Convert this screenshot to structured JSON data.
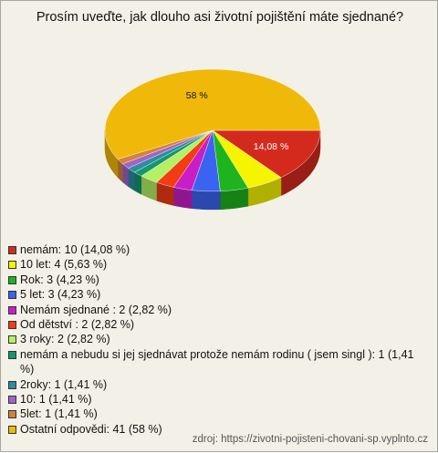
{
  "chart_data": {
    "type": "pie",
    "title": "Prosím uveďte, jak dlouho asi životní pojištění máte sjednané?",
    "categories": [
      "nemám: 10 (14,08 %)",
      "10 let: 4 (5,63 %)",
      "Rok: 3 (4,23 %)",
      "5 let: 3 (4,23 %)",
      "Nemám sjednané : 2 (2,82 %)",
      "Od dětství : 2 (2,82 %)",
      "3 roky: 2 (2,82 %)",
      "nemám a nebudu si jej sjednávat protože nemám rodinu ( jsem singl ): 1 (1,41 %)",
      "2roky: 1 (1,41 %)",
      "10: 1 (1,41 %)",
      "5let: 1 (1,41 %)",
      "Ostatní odpovědi: 41 (58 %)"
    ],
    "values": [
      14.08,
      5.63,
      4.23,
      4.23,
      2.82,
      2.82,
      2.82,
      1.41,
      1.41,
      1.41,
      1.41,
      58
    ],
    "value_labels": [
      "14,08 %",
      null,
      null,
      null,
      null,
      null,
      null,
      null,
      null,
      null,
      null,
      "58 %"
    ],
    "colors": [
      "#d42a1e",
      "#f5f500",
      "#1eb41e",
      "#3a64f0",
      "#c81ec8",
      "#f23c14",
      "#b4f064",
      "#14966e",
      "#2d8ca0",
      "#a064c8",
      "#d2823c",
      "#f0b90a"
    ],
    "source": "zdroj: https://zivotni-pojisteni-chovani-sp.vyplnto.cz"
  }
}
